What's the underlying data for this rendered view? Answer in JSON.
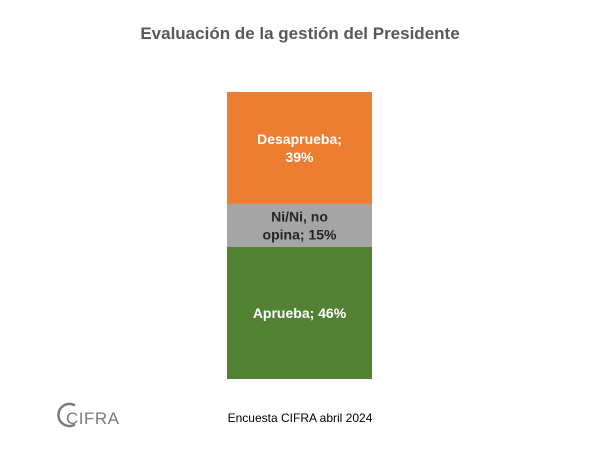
{
  "title": "Evaluación de la gestión del Presidente",
  "source": "Encuesta CIFRA abril 2024",
  "logo": {
    "text": "CIFRA",
    "color": "#7a7a7a"
  },
  "chart_data": {
    "type": "bar",
    "stacked": true,
    "title": "Evaluación de la gestión del Presidente",
    "xlabel": "",
    "ylabel": "",
    "ylim": [
      0,
      100
    ],
    "unit": "%",
    "grid": false,
    "legend": "none",
    "segments": [
      {
        "name": "Aprueba",
        "value": 46,
        "label_lines": [
          "Aprueba; 46%"
        ],
        "color": "#548235",
        "label_color": "#ffffff"
      },
      {
        "name": "Ni/Ni, no opina",
        "value": 15,
        "label_lines": [
          "Ni/Ni, no",
          "opina; 15%"
        ],
        "color": "#a5a5a5",
        "label_color": "#262626"
      },
      {
        "name": "Desaprueba",
        "value": 39,
        "label_lines": [
          "Desaprueba;",
          "39%"
        ],
        "color": "#ed7d31",
        "label_color": "#ffffff"
      }
    ]
  }
}
